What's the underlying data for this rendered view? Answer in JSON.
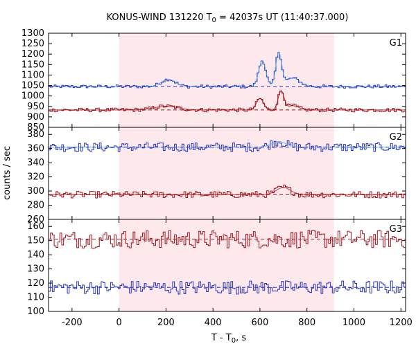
{
  "title": {
    "prefix": "KONUS-WIND 131220 T",
    "sub": "0",
    "suffix": " = 42037s UT (11:40:37.000)"
  },
  "axes": {
    "ylabel": "counts / sec",
    "xlabel_prefix": "T - T",
    "xlabel_sub": "0",
    "xlabel_suffix": ", s"
  },
  "colors": {
    "blue": "#2430c0",
    "red": "#a01018",
    "cyan": "#4ab8e0",
    "shade": "#fde8ec",
    "grid_tick": "#000000"
  },
  "chart_data": {
    "type": "line",
    "style": "step",
    "x_range": [
      -300,
      1220
    ],
    "x_ticks": [
      -200,
      0,
      200,
      400,
      600,
      800,
      1000,
      1200
    ],
    "highlight_interval": [
      0,
      915
    ],
    "panels": [
      {
        "label": "G1",
        "ylim": [
          850,
          1300
        ],
        "y_ticks": [
          850,
          900,
          950,
          1000,
          1050,
          1100,
          1150,
          1200,
          1250,
          1300
        ],
        "series": [
          {
            "color": "blue",
            "background": 1045,
            "fit_color": "cyan",
            "noise": 5,
            "features": [
              {
                "center": 210,
                "width": 60,
                "amp": 35
              },
              {
                "center": 610,
                "width": 30,
                "amp": 125
              },
              {
                "center": 680,
                "width": 25,
                "amp": 160
              },
              {
                "center": 740,
                "width": 60,
                "amp": 40
              }
            ]
          },
          {
            "color": "red",
            "background": 933,
            "fit_color": "red",
            "noise": 6,
            "features": [
              {
                "center": 200,
                "width": 100,
                "amp": 18
              },
              {
                "center": 600,
                "width": 30,
                "amp": 55
              },
              {
                "center": 690,
                "width": 25,
                "amp": 90
              },
              {
                "center": 740,
                "width": 50,
                "amp": 20
              }
            ]
          }
        ]
      },
      {
        "label": "G2",
        "ylim": [
          260,
          390
        ],
        "y_ticks": [
          260,
          280,
          300,
          320,
          340,
          360,
          380
        ],
        "series": [
          {
            "color": "blue",
            "background": 362,
            "fit_color": "cyan",
            "noise": 4,
            "features": [
              {
                "center": 680,
                "width": 60,
                "amp": 8
              }
            ]
          },
          {
            "color": "red",
            "background": 295,
            "fit_color": "red",
            "noise": 3,
            "features": [
              {
                "center": 700,
                "width": 60,
                "amp": 10
              }
            ]
          }
        ]
      },
      {
        "label": "G3",
        "ylim": [
          100,
          165
        ],
        "y_ticks": [
          100,
          110,
          120,
          130,
          140,
          150,
          160
        ],
        "series": [
          {
            "color": "red",
            "background": 151,
            "fit_color": "red",
            "noise": 4,
            "features": []
          },
          {
            "color": "blue",
            "background": 117,
            "fit_color": "blue",
            "noise": 3,
            "features": []
          }
        ]
      }
    ]
  }
}
